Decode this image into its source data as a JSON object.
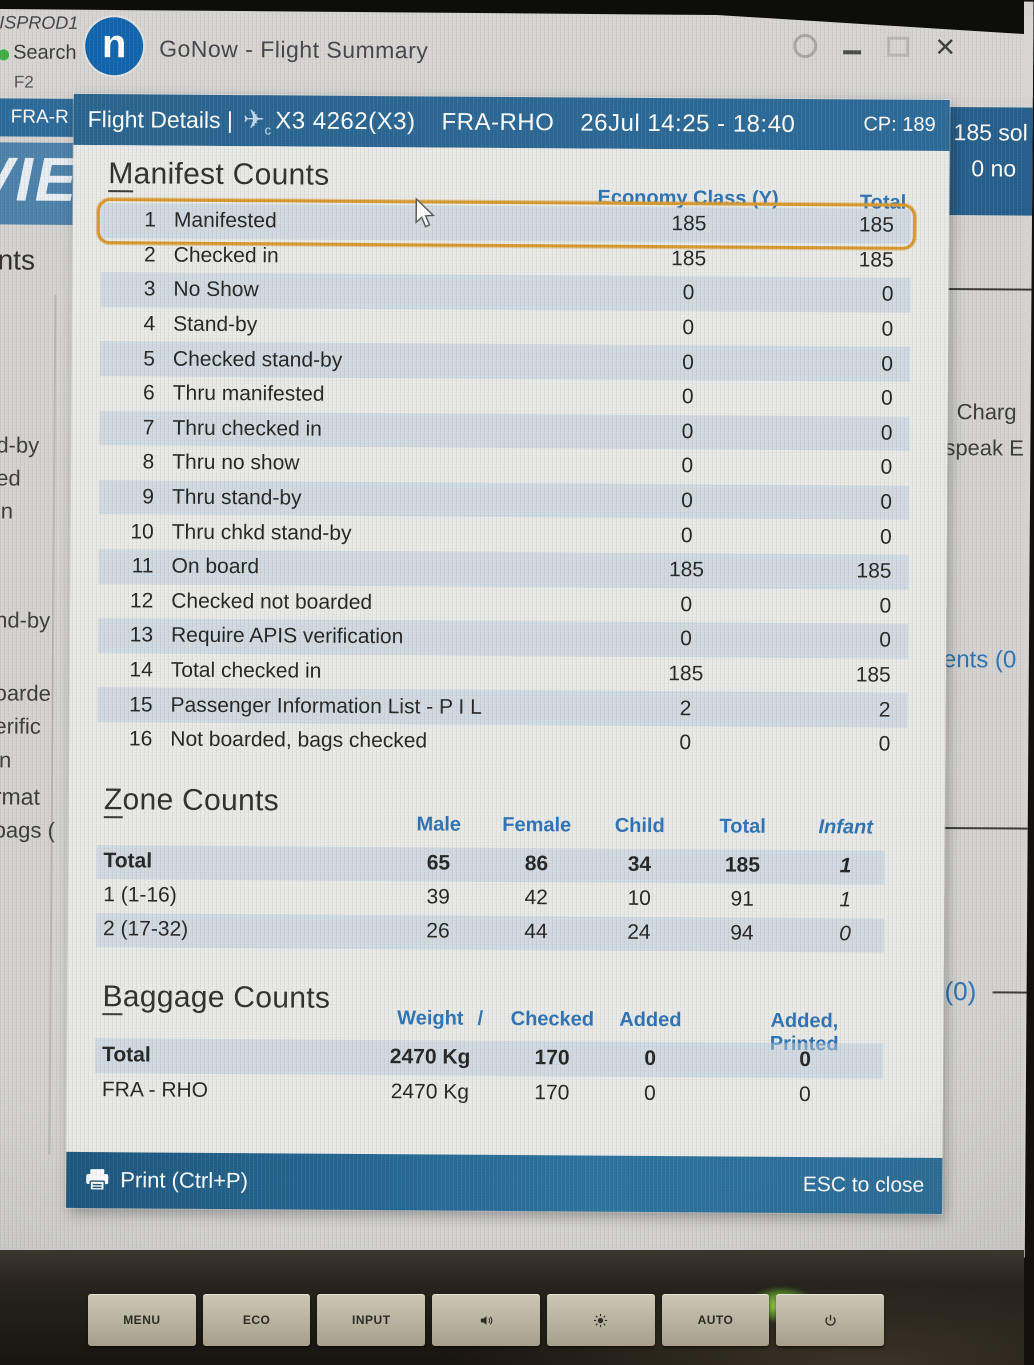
{
  "window": {
    "title": "GoNow - Flight Summary",
    "logo_letter": "n"
  },
  "dialog": {
    "header": {
      "title": "Flight Details |",
      "plane_icon": "airplane-icon",
      "plane_sub": "c",
      "flight": "X3 4262(X3)",
      "route": "FRA-RHO",
      "datetime": "26Jul 14:25 - 18:40",
      "cp": "CP: 189"
    },
    "manifest": {
      "title": "Manifest Counts",
      "headers": {
        "economy": "Economy Class (Y)",
        "total": "Total"
      },
      "highlighted_row": 1,
      "rows": [
        {
          "n": "1",
          "label": "Manifested",
          "economy": "185",
          "total": "185"
        },
        {
          "n": "2",
          "label": "Checked in",
          "economy": "185",
          "total": "185"
        },
        {
          "n": "3",
          "label": "No Show",
          "economy": "0",
          "total": "0"
        },
        {
          "n": "4",
          "label": "Stand-by",
          "economy": "0",
          "total": "0"
        },
        {
          "n": "5",
          "label": "Checked stand-by",
          "economy": "0",
          "total": "0"
        },
        {
          "n": "6",
          "label": "Thru manifested",
          "economy": "0",
          "total": "0"
        },
        {
          "n": "7",
          "label": "Thru checked in",
          "economy": "0",
          "total": "0"
        },
        {
          "n": "8",
          "label": "Thru no show",
          "economy": "0",
          "total": "0"
        },
        {
          "n": "9",
          "label": "Thru stand-by",
          "economy": "0",
          "total": "0"
        },
        {
          "n": "10",
          "label": "Thru chkd stand-by",
          "economy": "0",
          "total": "0"
        },
        {
          "n": "11",
          "label": "On board",
          "economy": "185",
          "total": "185"
        },
        {
          "n": "12",
          "label": "Checked not boarded",
          "economy": "0",
          "total": "0"
        },
        {
          "n": "13",
          "label": "Require APIS verification",
          "economy": "0",
          "total": "0"
        },
        {
          "n": "14",
          "label": "Total checked in",
          "economy": "185",
          "total": "185"
        },
        {
          "n": "15",
          "label": "Passenger Information List - P I L",
          "economy": "2",
          "total": "2"
        },
        {
          "n": "16",
          "label": "Not boarded, bags checked",
          "economy": "0",
          "total": "0"
        }
      ]
    },
    "zone": {
      "title": "Zone Counts",
      "headers": [
        "Male",
        "Female",
        "Child",
        "Total",
        "Infant"
      ],
      "rows": [
        {
          "label": "Total",
          "values": [
            "65",
            "86",
            "34",
            "185",
            "1"
          ],
          "bold": true
        },
        {
          "label": "1 (1-16)",
          "values": [
            "39",
            "42",
            "10",
            "91",
            "1"
          ],
          "bold": false
        },
        {
          "label": "2 (17-32)",
          "values": [
            "26",
            "44",
            "24",
            "94",
            "0"
          ],
          "bold": false
        }
      ]
    },
    "baggage": {
      "title": "Baggage Counts",
      "headers": {
        "weight": "Weight",
        "slash": "/",
        "checked": "Checked",
        "added": "Added",
        "added_printed": "Added, Printed"
      },
      "rows": [
        {
          "label": "Total",
          "values": [
            "2470 Kg",
            "170",
            "0",
            "0"
          ],
          "bold": true
        },
        {
          "label": "FRA - RHO",
          "values": [
            "2470 Kg",
            "170",
            "0",
            "0"
          ],
          "bold": false
        }
      ]
    },
    "footer": {
      "print": "Print (Ctrl+P)",
      "esc": "ESC to close"
    }
  },
  "background_fragments": {
    "left": {
      "isprod": "ISPROD1",
      "search": "Search",
      "f2": "F2",
      "fra_tab": "FRA-R",
      "vie": "VIE",
      "nts": "nts",
      "d_by": "d-by",
      "ed": "ed",
      "in1": "in",
      "nd_by": "nd-by",
      "oarde": "oarde",
      "erific": "erific",
      "in2": "in",
      "rmat": "rmat",
      "bags": "bags ("
    },
    "right": {
      "sold": "185 sol",
      "noshow": "0 no",
      "charg": "Charg",
      "speak": "speak E",
      "ents": "ents (0",
      "zero": "(0)"
    }
  },
  "monitor": {
    "buttons": [
      {
        "label": "MENU",
        "icon": null
      },
      {
        "label": "ECO",
        "icon": null
      },
      {
        "label": "INPUT",
        "icon": null
      },
      {
        "label": null,
        "icon": "speaker-icon"
      },
      {
        "label": null,
        "icon": "brightness-icon"
      },
      {
        "label": "AUTO",
        "icon": null
      },
      {
        "label": null,
        "icon": "power-icon"
      }
    ]
  },
  "colors": {
    "accent_blue": "#2e74b5",
    "dialog_header_blue": "#2d6b9a",
    "footer_blue": "#1d5880",
    "highlight_orange": "#d8992e",
    "led_green": "#8ee23c"
  }
}
